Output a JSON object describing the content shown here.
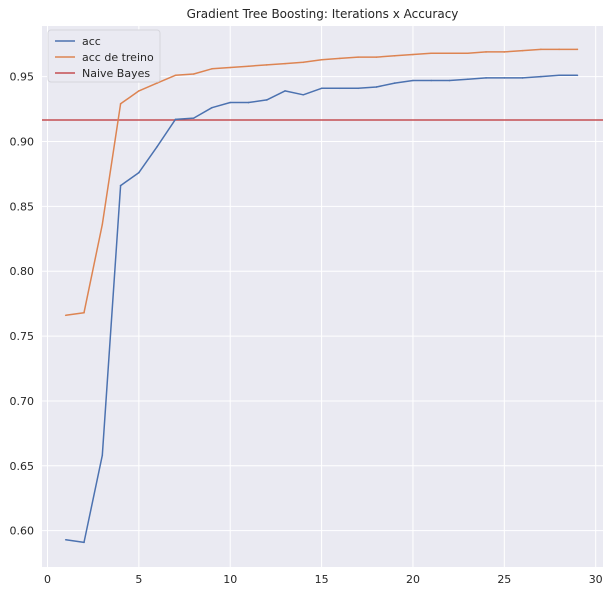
{
  "chart_data": {
    "type": "line",
    "title": "Gradient Tree Boosting: Iterations x Accuracy",
    "xlabel": "",
    "ylabel": "",
    "xlim": [
      -0.3,
      30.4
    ],
    "ylim": [
      0.572,
      0.989
    ],
    "x_ticks": [
      0,
      5,
      10,
      15,
      20,
      25,
      30
    ],
    "y_ticks": [
      0.6,
      0.65,
      0.7,
      0.75,
      0.8,
      0.85,
      0.9,
      0.95
    ],
    "y_tick_labels": [
      "0.60",
      "0.65",
      "0.70",
      "0.75",
      "0.80",
      "0.85",
      "0.90",
      "0.95"
    ],
    "grid": true,
    "legend_position": "upper-left",
    "background": "#eaeaf2",
    "series": [
      {
        "name": "acc",
        "color": "#4c72b0",
        "x": [
          1,
          2,
          3,
          4,
          5,
          6,
          7,
          8,
          9,
          10,
          11,
          12,
          13,
          14,
          15,
          16,
          17,
          18,
          19,
          20,
          21,
          22,
          23,
          24,
          25,
          26,
          27,
          28,
          29
        ],
        "y": [
          0.593,
          0.591,
          0.658,
          0.866,
          0.876,
          0.896,
          0.917,
          0.918,
          0.926,
          0.93,
          0.93,
          0.932,
          0.939,
          0.936,
          0.941,
          0.941,
          0.941,
          0.942,
          0.945,
          0.947,
          0.947,
          0.947,
          0.948,
          0.949,
          0.949,
          0.949,
          0.95,
          0.951,
          0.951
        ]
      },
      {
        "name": "acc de treino",
        "color": "#dd8452",
        "x": [
          1,
          2,
          3,
          4,
          5,
          6,
          7,
          8,
          9,
          10,
          11,
          12,
          13,
          14,
          15,
          16,
          17,
          18,
          19,
          20,
          21,
          22,
          23,
          24,
          25,
          26,
          27,
          28,
          29
        ],
        "y": [
          0.766,
          0.768,
          0.836,
          0.929,
          0.939,
          0.945,
          0.951,
          0.952,
          0.956,
          0.957,
          0.958,
          0.959,
          0.96,
          0.961,
          0.963,
          0.964,
          0.965,
          0.965,
          0.966,
          0.967,
          0.968,
          0.968,
          0.968,
          0.969,
          0.969,
          0.97,
          0.971,
          0.971,
          0.971
        ]
      }
    ],
    "hlines": [
      {
        "name": "Naive Bayes",
        "color": "#c44e52",
        "y": 0.9165
      }
    ]
  }
}
